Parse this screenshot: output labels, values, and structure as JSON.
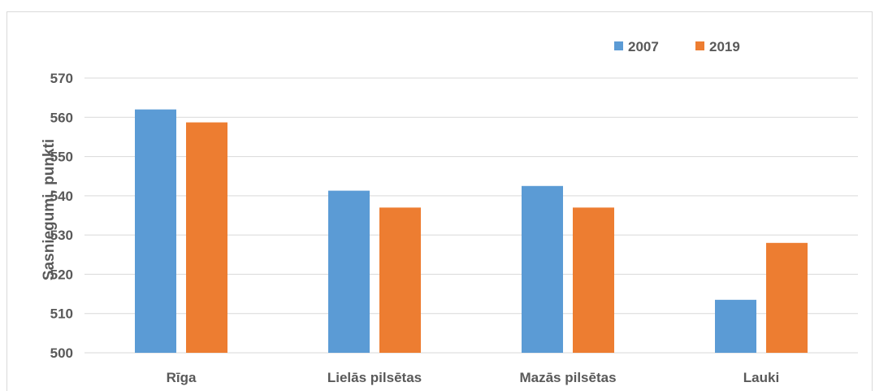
{
  "chart_data": {
    "type": "bar",
    "ylabel": "Sasniegumi, punkti",
    "categories": [
      "Rīga",
      "Lielās pilsētas",
      "Mazās pilsētas",
      "Lauki"
    ],
    "series": [
      {
        "name": "2007",
        "values": [
          562,
          541.3,
          542.5,
          513.5
        ],
        "color": "#5b9bd5"
      },
      {
        "name": "2019",
        "values": [
          558.7,
          537,
          537,
          528
        ],
        "color": "#ed7d31"
      }
    ],
    "ylim": [
      500,
      570
    ],
    "yticks": [
      "500",
      "510",
      "520",
      "530",
      "540",
      "550",
      "560",
      "570"
    ],
    "grid": true,
    "legend_position": "top-right"
  }
}
